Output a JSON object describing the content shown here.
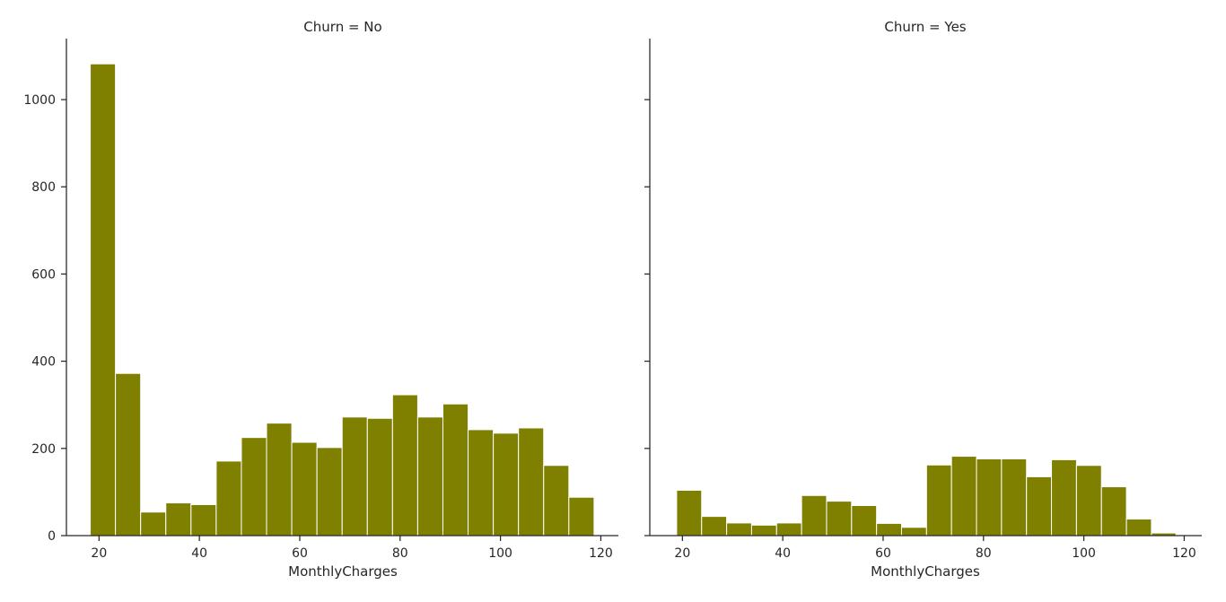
{
  "chart_data": [
    {
      "type": "bar",
      "title": "Churn = No",
      "xlabel": "MonthlyCharges",
      "ylabel": "",
      "xlim": [
        13.5,
        123.5
      ],
      "ylim": [
        0,
        1140
      ],
      "xticks": [
        20,
        40,
        60,
        80,
        100,
        120
      ],
      "yticks": [
        0,
        200,
        400,
        600,
        800,
        1000
      ],
      "bin_edges": [
        18.25,
        23.27,
        28.29,
        33.31,
        38.33,
        43.35,
        48.37,
        53.39,
        58.41,
        63.43,
        68.45,
        73.47,
        78.49,
        83.51,
        88.53,
        93.55,
        98.57,
        103.59,
        108.61,
        113.63,
        118.65
      ],
      "values": [
        1082,
        372,
        54,
        75,
        71,
        171,
        225,
        258,
        214,
        202,
        272,
        269,
        323,
        272,
        302,
        243,
        235,
        247,
        161,
        88
      ],
      "color": "#808000"
    },
    {
      "type": "bar",
      "title": "Churn = Yes",
      "xlabel": "MonthlyCharges",
      "ylabel": "",
      "xlim": [
        13.5,
        123.5
      ],
      "ylim": [
        0,
        1140
      ],
      "xticks": [
        20,
        40,
        60,
        80,
        100,
        120
      ],
      "yticks": [
        0,
        200,
        400,
        600,
        800,
        1000
      ],
      "bin_edges": [
        18.85,
        23.83,
        28.81,
        33.79,
        38.77,
        43.75,
        48.73,
        53.71,
        58.69,
        63.67,
        68.65,
        73.63,
        78.61,
        83.59,
        88.57,
        93.55,
        98.53,
        103.51,
        108.49,
        113.47,
        118.35
      ],
      "values": [
        104,
        44,
        29,
        24,
        29,
        92,
        79,
        69,
        28,
        19,
        162,
        182,
        176,
        176,
        135,
        174,
        161,
        112,
        38,
        6
      ],
      "color": "#808000"
    }
  ]
}
